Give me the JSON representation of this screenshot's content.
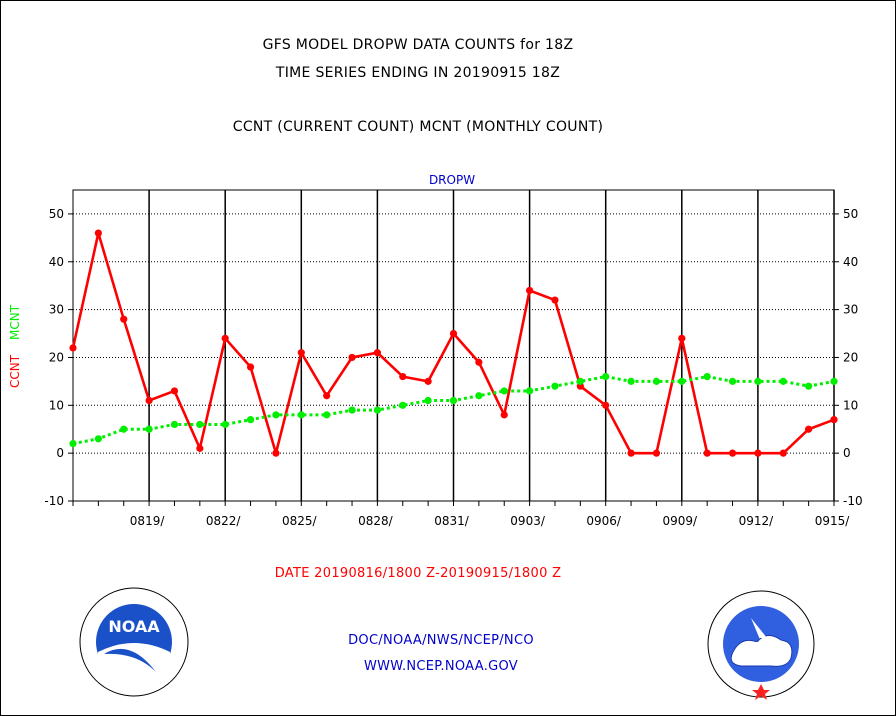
{
  "header": {
    "line1": "GFS MODEL DROPW DATA COUNTS for 18Z",
    "line2": "TIME SERIES ENDING IN 20190915 18Z",
    "line3": "CCNT (CURRENT COUNT) MCNT (MONTHLY COUNT)"
  },
  "chart_data": {
    "type": "line",
    "title": "DROPW",
    "ylabel_series1": "CCNT",
    "ylabel_series2": "MCNT",
    "xlabel": "DATE 20190816/1800 Z-20190915/1800 Z",
    "ylim": [
      -10,
      55
    ],
    "y_ticks": [
      -10,
      0,
      10,
      20,
      30,
      40,
      50
    ],
    "x_start": "20190816",
    "x_end": "20190915",
    "x_tick_labels": [
      "0819/",
      "0822/",
      "0825/",
      "0828/",
      "0831/",
      "0903/",
      "0906/",
      "0909/",
      "0912/",
      "0915/"
    ],
    "x": [
      "0816",
      "0817",
      "0818",
      "0819",
      "0820",
      "0821",
      "0822",
      "0823",
      "0824",
      "0825",
      "0826",
      "0827",
      "0828",
      "0829",
      "0830",
      "0831",
      "0901",
      "0902",
      "0903",
      "0904",
      "0905",
      "0906",
      "0907",
      "0908",
      "0909",
      "0910",
      "0911",
      "0912",
      "0913",
      "0914",
      "0915"
    ],
    "grid": true,
    "series": [
      {
        "name": "CCNT",
        "color": "#ff0000",
        "style": "solid",
        "values": [
          22,
          46,
          28,
          11,
          13,
          1,
          24,
          18,
          0,
          21,
          12,
          20,
          21,
          16,
          15,
          25,
          19,
          8,
          34,
          32,
          14,
          10,
          0,
          0,
          24,
          0,
          0,
          0,
          0,
          5,
          7
        ]
      },
      {
        "name": "MCNT",
        "color": "#00ee00",
        "style": "dotted",
        "values": [
          2,
          3,
          5,
          5,
          6,
          6,
          6,
          7,
          8,
          8,
          8,
          9,
          9,
          10,
          11,
          11,
          12,
          13,
          13,
          14,
          15,
          16,
          15,
          15,
          15,
          16,
          15,
          15,
          15,
          14,
          15
        ]
      }
    ]
  },
  "footer": {
    "agency": "DOC/NOAA/NWS/NCEP/NCO",
    "url": "WWW.NCEP.NOAA.GOV",
    "noaa_logo_text": "NOAA",
    "nws_logo_text": "NATIONAL WEATHER SERVICE"
  },
  "colors": {
    "ccnt": "#ff0000",
    "mcnt": "#00ee00",
    "title_blue": "#0000cc",
    "footer_blue": "#0000cc"
  }
}
